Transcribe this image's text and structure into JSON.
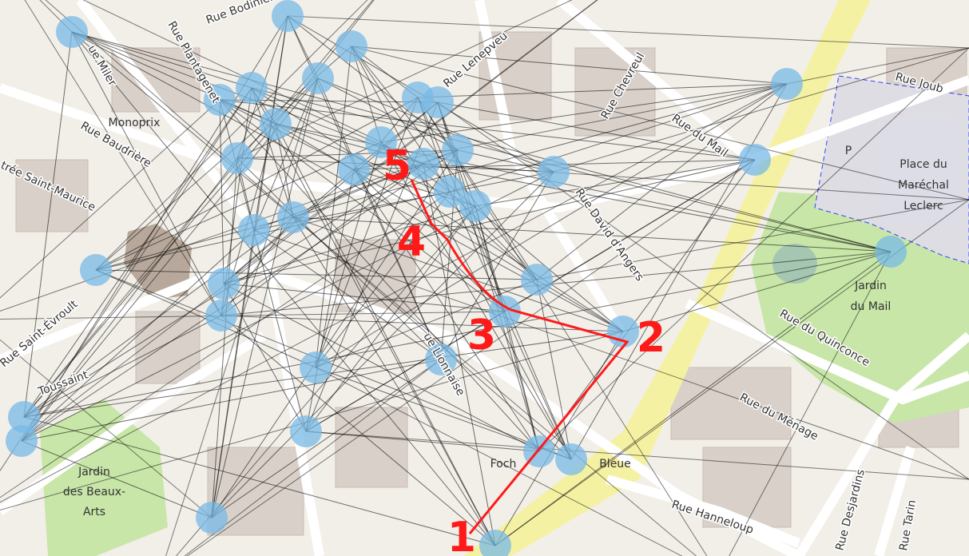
{
  "map": {
    "streets": [
      "Rue Bodinier",
      "Rue Lenepveu",
      "Rue Chevreul",
      "Rue du Mail",
      "Rue Joub",
      "Rue Baudrière",
      "trée Saint-Maurice",
      "ue Miler",
      "Rue David d'Angers",
      "Rue du Quinconce",
      "Rue du Ménage",
      "Rue Hanneloup",
      "Rue Desjardins",
      "Rue Tarin",
      "Rue Saint-Évroult",
      "Toussaint",
      "Rue Plantagenet",
      "ue Lionnaise"
    ],
    "places": [
      "Monoprix",
      "Place du",
      "Maréchal",
      "Leclerc",
      "P",
      "Jardin",
      "du Mail",
      "Jardin",
      "des Beaux-",
      "Arts",
      "Foch",
      "Bleue"
    ],
    "route_stops": [
      "1",
      "2",
      "3",
      "4",
      "5"
    ]
  }
}
